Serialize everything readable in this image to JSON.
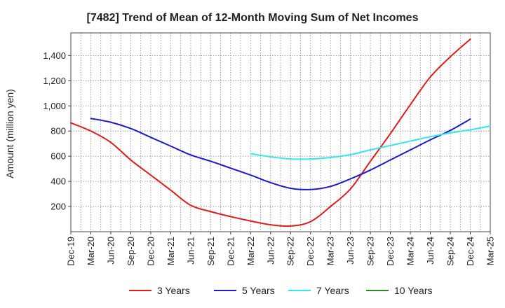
{
  "chart_data": {
    "type": "line",
    "title": "[7482]  Trend of Mean of 12-Month Moving Sum of Net Incomes",
    "ylabel": "Amount (million yen)",
    "xlabel": "",
    "x_ticks": [
      "Dec-19",
      "Mar-20",
      "Jun-20",
      "Sep-20",
      "Dec-20",
      "Mar-21",
      "Jun-21",
      "Sep-21",
      "Dec-21",
      "Mar-22",
      "Jun-22",
      "Sep-22",
      "Dec-22",
      "Mar-23",
      "Jun-23",
      "Sep-23",
      "Dec-23",
      "Mar-24",
      "Jun-24",
      "Sep-24",
      "Dec-24",
      "Mar-25"
    ],
    "y_ticks": [
      200,
      400,
      600,
      800,
      1000,
      1200,
      1400
    ],
    "y_tick_labels": [
      "200",
      "400",
      "600",
      "800",
      "1,000",
      "1,200",
      "1,400"
    ],
    "ylim": [
      0,
      1580
    ],
    "grid": true,
    "legend_position": "bottom",
    "series": [
      {
        "name": "3 Years",
        "color": "#e01b1b",
        "x_start_index": 0,
        "values": [
          865,
          800,
          710,
          570,
          450,
          330,
          210,
          160,
          120,
          85,
          55,
          45,
          80,
          200,
          340,
          560,
          780,
          1010,
          1230,
          1390,
          1530
        ]
      },
      {
        "name": "5 Years",
        "color": "#1a1acc",
        "x_start_index": 1,
        "values": [
          900,
          870,
          820,
          750,
          680,
          610,
          560,
          505,
          450,
          390,
          345,
          335,
          360,
          420,
          490,
          570,
          650,
          730,
          805,
          895
        ]
      },
      {
        "name": "7 Years",
        "color": "#33e8ea",
        "x_start_index": 9,
        "values": [
          620,
          595,
          578,
          578,
          590,
          612,
          650,
          685,
          720,
          755,
          785,
          810,
          840
        ]
      },
      {
        "name": "10 Years",
        "color": "#2a8a2a",
        "x_start_index": 0,
        "values": []
      }
    ]
  }
}
